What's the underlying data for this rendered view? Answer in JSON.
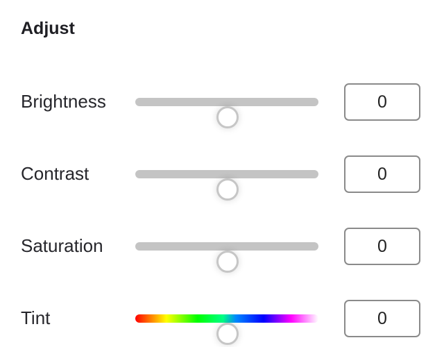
{
  "panel": {
    "title": "Adjust",
    "sliders": [
      {
        "label": "Brightness",
        "value": "0",
        "fraction": 0.5,
        "track": "gray"
      },
      {
        "label": "Contrast",
        "value": "0",
        "fraction": 0.5,
        "track": "gray"
      },
      {
        "label": "Saturation",
        "value": "0",
        "fraction": 0.5,
        "track": "gray"
      },
      {
        "label": "Tint",
        "value": "0",
        "fraction": 0.5,
        "track": "rainbow"
      }
    ]
  }
}
